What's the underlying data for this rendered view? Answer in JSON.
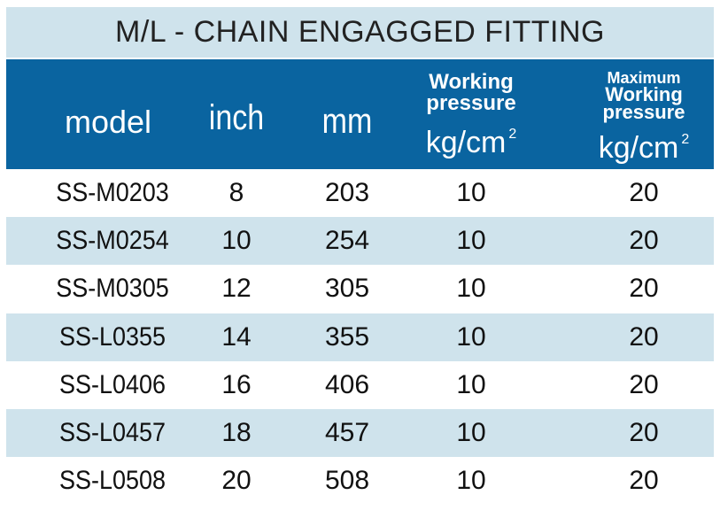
{
  "title": "M/L - CHAIN ENGAGGED FITTING",
  "headers": {
    "model": "model",
    "inch": "inch",
    "mm": "mm",
    "working_line1": "Working",
    "working_line2": "pressure",
    "max_line1": "Maximum",
    "max_line2": "Working",
    "max_line3": "pressure",
    "unit": "kg/cm",
    "unit_sup": "2"
  },
  "rows": [
    {
      "model": "SS-M0203",
      "inch": "8",
      "mm": "203",
      "working": "10",
      "max": "20"
    },
    {
      "model": "SS-M0254",
      "inch": "10",
      "mm": "254",
      "working": "10",
      "max": "20"
    },
    {
      "model": "SS-M0305",
      "inch": "12",
      "mm": "305",
      "working": "10",
      "max": "20"
    },
    {
      "model": "SS-L0355",
      "inch": "14",
      "mm": "355",
      "working": "10",
      "max": "20"
    },
    {
      "model": "SS-L0406",
      "inch": "16",
      "mm": "406",
      "working": "10",
      "max": "20"
    },
    {
      "model": "SS-L0457",
      "inch": "18",
      "mm": "457",
      "working": "10",
      "max": "20"
    },
    {
      "model": "SS-L0508",
      "inch": "20",
      "mm": "508",
      "working": "10",
      "max": "20"
    }
  ]
}
